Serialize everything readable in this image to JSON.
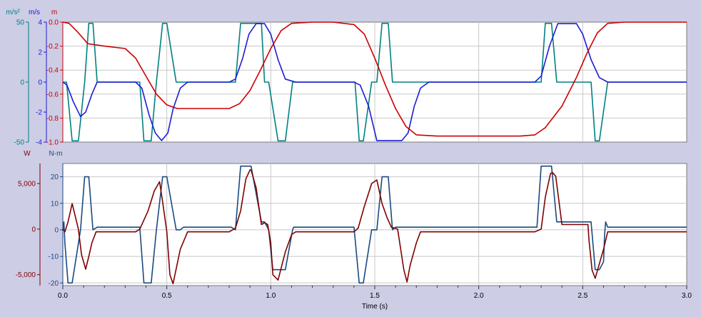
{
  "chart_data": [
    {
      "type": "line",
      "title": "",
      "xlabel": "",
      "xlim": [
        0,
        3
      ],
      "grid": true,
      "axes": [
        {
          "id": "acc",
          "unit": "m/s²",
          "color": "#008080",
          "ylim": [
            -50,
            50
          ],
          "ticks": [
            50,
            0,
            -50
          ],
          "tick_labels": [
            "50",
            "0",
            "-50"
          ]
        },
        {
          "id": "vel",
          "unit": "m/s",
          "color": "#1c1cd6",
          "ylim": [
            -4,
            4
          ],
          "ticks": [
            4,
            2,
            0,
            -2,
            -4
          ],
          "tick_labels": [
            "4",
            "2",
            "0",
            "-2",
            "-4"
          ]
        },
        {
          "id": "pos",
          "unit": "m",
          "color": "#cc0000",
          "ylim": [
            -1,
            0
          ],
          "ticks": [
            0,
            -0.2,
            -0.4,
            -0.6,
            -0.8,
            -1
          ],
          "tick_labels": [
            "0.0",
            "-0.2",
            "-0.4",
            "-0.6",
            "-0.8",
            "-1.0"
          ]
        }
      ],
      "series": [
        {
          "axis": "acc",
          "color": "#008080",
          "x": [
            0.0,
            0.018,
            0.045,
            0.075,
            0.105,
            0.125,
            0.145,
            0.165,
            0.35,
            0.37,
            0.39,
            0.425,
            0.45,
            0.48,
            0.5,
            0.545,
            0.565,
            0.585,
            0.81,
            0.83,
            0.855,
            0.88,
            0.905,
            0.955,
            0.97,
            0.99,
            1.035,
            1.07,
            1.105,
            1.125,
            1.14,
            1.405,
            1.425,
            1.445,
            1.485,
            1.51,
            1.535,
            1.565,
            1.585,
            1.605,
            1.72,
            1.74,
            1.76,
            2.28,
            2.3,
            2.32,
            2.35,
            2.375,
            2.405,
            2.54,
            2.56,
            2.58,
            2.62,
            3.0
          ],
          "y": [
            0,
            0,
            -49,
            -49,
            0,
            49,
            49,
            0,
            0,
            0,
            -49,
            -49,
            0,
            49,
            49,
            0,
            0,
            0,
            0,
            0,
            49,
            49,
            49,
            49,
            0,
            0,
            -49,
            -49,
            0,
            0,
            0,
            0,
            -49,
            -49,
            0,
            0,
            49,
            49,
            0,
            0,
            0,
            0,
            0,
            0,
            0,
            49,
            49,
            0,
            0,
            0,
            -49,
            -49,
            0,
            0
          ]
        },
        {
          "axis": "vel",
          "color": "#1c1cd6",
          "x": [
            0.0,
            0.02,
            0.05,
            0.085,
            0.11,
            0.14,
            0.165,
            0.35,
            0.38,
            0.415,
            0.445,
            0.475,
            0.505,
            0.53,
            0.565,
            0.6,
            0.8,
            0.83,
            0.865,
            0.895,
            0.93,
            0.97,
            1.0,
            1.035,
            1.07,
            1.12,
            1.4,
            1.43,
            1.47,
            1.51,
            1.63,
            1.66,
            1.69,
            1.72,
            1.76,
            2.27,
            2.3,
            2.34,
            2.38,
            2.47,
            2.5,
            2.54,
            2.58,
            2.62,
            3.0
          ],
          "y": [
            0,
            -0.2,
            -1.3,
            -2.3,
            -2.0,
            -0.8,
            0,
            0,
            -0.4,
            -2.2,
            -3.4,
            -3.9,
            -3.4,
            -1.8,
            -0.4,
            0,
            0,
            0.2,
            1.6,
            3.2,
            3.9,
            3.9,
            3.2,
            1.5,
            0.2,
            0,
            0,
            -0.2,
            -1.6,
            -3.9,
            -3.9,
            -3.4,
            -1.6,
            -0.4,
            0,
            0,
            0.4,
            2.4,
            3.9,
            3.9,
            3.2,
            1.5,
            0.3,
            0,
            0
          ]
        },
        {
          "axis": "pos",
          "color": "#cc0000",
          "x": [
            0.0,
            0.03,
            0.07,
            0.12,
            0.2,
            0.3,
            0.35,
            0.4,
            0.45,
            0.5,
            0.55,
            0.6,
            0.7,
            0.8,
            0.85,
            0.9,
            0.95,
            1.0,
            1.05,
            1.1,
            1.2,
            1.3,
            1.4,
            1.45,
            1.5,
            1.55,
            1.6,
            1.65,
            1.7,
            1.8,
            2.0,
            2.1,
            2.2,
            2.27,
            2.32,
            2.4,
            2.47,
            2.52,
            2.57,
            2.62,
            2.7,
            3.0
          ],
          "y": [
            0,
            -0.01,
            -0.08,
            -0.18,
            -0.2,
            -0.22,
            -0.3,
            -0.45,
            -0.6,
            -0.69,
            -0.72,
            -0.72,
            -0.72,
            -0.72,
            -0.68,
            -0.57,
            -0.4,
            -0.22,
            -0.07,
            -0.01,
            0,
            0,
            -0.02,
            -0.1,
            -0.3,
            -0.52,
            -0.72,
            -0.87,
            -0.94,
            -0.95,
            -0.95,
            -0.95,
            -0.95,
            -0.94,
            -0.88,
            -0.7,
            -0.46,
            -0.26,
            -0.09,
            -0.01,
            0,
            0
          ]
        }
      ]
    },
    {
      "type": "line",
      "title": "",
      "xlabel": "Time (s)",
      "xlim": [
        0,
        3
      ],
      "x_ticks": [
        0,
        0.5,
        1,
        1.5,
        2,
        2.5,
        3
      ],
      "x_tick_labels": [
        "0.0",
        "0.5",
        "1.0",
        "1.5",
        "2.0",
        "2.5",
        "3.0"
      ],
      "grid": true,
      "axes": [
        {
          "id": "power",
          "unit": "W",
          "color": "#800000",
          "ylim": [
            -6200,
            7200
          ],
          "ticks": [
            5000,
            0,
            -5000
          ],
          "tick_labels": [
            "5,000",
            "0",
            "-5,000"
          ]
        },
        {
          "id": "torque",
          "unit": "N-m",
          "color": "#1a4a80",
          "ylim": [
            -21,
            25
          ],
          "ticks": [
            20,
            10,
            0,
            -10,
            -20
          ],
          "tick_labels": [
            "20",
            "10",
            "0",
            "-10",
            "-20"
          ]
        }
      ],
      "series": [
        {
          "axis": "torque",
          "color": "#1a4a80",
          "x": [
            0.0,
            0.005,
            0.01,
            0.025,
            0.045,
            0.085,
            0.105,
            0.125,
            0.145,
            0.165,
            0.35,
            0.37,
            0.39,
            0.425,
            0.45,
            0.48,
            0.5,
            0.545,
            0.565,
            0.58,
            0.81,
            0.83,
            0.855,
            0.88,
            0.905,
            0.955,
            0.97,
            0.99,
            1.01,
            1.035,
            1.07,
            1.105,
            1.11,
            1.4,
            1.425,
            1.445,
            1.485,
            1.51,
            1.535,
            1.565,
            1.585,
            1.6,
            1.72,
            1.74,
            1.76,
            2.28,
            2.3,
            2.32,
            2.35,
            2.375,
            2.405,
            2.54,
            2.56,
            2.58,
            2.6,
            2.605,
            2.61,
            2.62,
            3.0
          ],
          "y": [
            0,
            3,
            -5,
            -20,
            -20,
            0,
            20,
            20,
            0,
            1,
            1,
            1,
            -20,
            -20,
            0,
            20,
            20,
            0,
            0,
            1,
            1,
            0,
            24,
            24,
            24,
            3,
            3,
            0,
            -15,
            -15,
            -15,
            0,
            1,
            1,
            -20,
            -20,
            0,
            0,
            20,
            20,
            0,
            1,
            1,
            1,
            1,
            1,
            24,
            24,
            24,
            3,
            3,
            3,
            -15,
            -15,
            -12,
            -2,
            3,
            1,
            1
          ]
        },
        {
          "axis": "power",
          "color": "#800000",
          "x": [
            0.0,
            0.01,
            0.025,
            0.045,
            0.075,
            0.09,
            0.11,
            0.125,
            0.14,
            0.16,
            0.35,
            0.37,
            0.41,
            0.44,
            0.465,
            0.48,
            0.5,
            0.515,
            0.53,
            0.565,
            0.6,
            0.8,
            0.83,
            0.855,
            0.88,
            0.9,
            0.905,
            0.93,
            0.955,
            0.97,
            0.985,
            1.0,
            1.01,
            1.035,
            1.07,
            1.1,
            1.12,
            1.4,
            1.42,
            1.45,
            1.485,
            1.51,
            1.535,
            1.56,
            1.58,
            1.61,
            1.64,
            1.655,
            1.67,
            1.7,
            1.72,
            2.27,
            2.3,
            2.32,
            2.345,
            2.355,
            2.37,
            2.4,
            2.42,
            2.445,
            2.525,
            2.53,
            2.545,
            2.56,
            2.6,
            2.62,
            3.0
          ],
          "y": [
            0,
            -300,
            800,
            2800,
            0,
            -2800,
            -4400,
            -3000,
            -1500,
            -300,
            -300,
            0,
            2000,
            4200,
            5200,
            3000,
            -300,
            -5000,
            -6000,
            -2200,
            -300,
            -300,
            100,
            2000,
            5500,
            6500,
            6500,
            4500,
            500,
            700,
            500,
            -1500,
            -5000,
            -5600,
            -2500,
            -600,
            -300,
            -300,
            100,
            2500,
            5000,
            5400,
            2800,
            1200,
            200,
            0,
            -4500,
            -5800,
            -4000,
            -1500,
            -300,
            -300,
            0,
            3500,
            6100,
            6200,
            5800,
            500,
            500,
            500,
            500,
            -1200,
            -4500,
            -5400,
            -2200,
            -300,
            -300
          ]
        }
      ]
    }
  ]
}
